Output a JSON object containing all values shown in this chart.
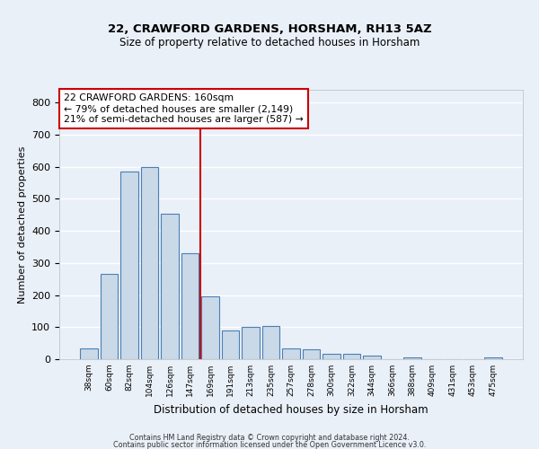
{
  "title": "22, CRAWFORD GARDENS, HORSHAM, RH13 5AZ",
  "subtitle": "Size of property relative to detached houses in Horsham",
  "xlabel": "Distribution of detached houses by size in Horsham",
  "ylabel": "Number of detached properties",
  "categories": [
    "38sqm",
    "60sqm",
    "82sqm",
    "104sqm",
    "126sqm",
    "147sqm",
    "169sqm",
    "191sqm",
    "213sqm",
    "235sqm",
    "257sqm",
    "278sqm",
    "300sqm",
    "322sqm",
    "344sqm",
    "366sqm",
    "388sqm",
    "409sqm",
    "431sqm",
    "453sqm",
    "475sqm"
  ],
  "values": [
    35,
    265,
    585,
    600,
    453,
    330,
    196,
    90,
    100,
    105,
    35,
    32,
    18,
    16,
    12,
    0,
    6,
    0,
    0,
    0,
    7
  ],
  "bar_color": "#c9d9e8",
  "bar_edge_color": "#4a7fb5",
  "property_line_x": 5.5,
  "annotation_text_line1": "22 CRAWFORD GARDENS: 160sqm",
  "annotation_text_line2": "← 79% of detached houses are smaller (2,149)",
  "annotation_text_line3": "21% of semi-detached houses are larger (587) →",
  "annotation_box_color": "#ffffff",
  "annotation_box_edge": "#cc0000",
  "line_color": "#cc0000",
  "bg_color": "#eaf0f8",
  "plot_bg_color": "#eaf0f8",
  "grid_color": "#ffffff",
  "ylim": [
    0,
    840
  ],
  "yticks": [
    0,
    100,
    200,
    300,
    400,
    500,
    600,
    700,
    800
  ],
  "title_fontsize": 9.5,
  "subtitle_fontsize": 8.5,
  "footer1": "Contains HM Land Registry data © Crown copyright and database right 2024.",
  "footer2": "Contains public sector information licensed under the Open Government Licence v3.0."
}
